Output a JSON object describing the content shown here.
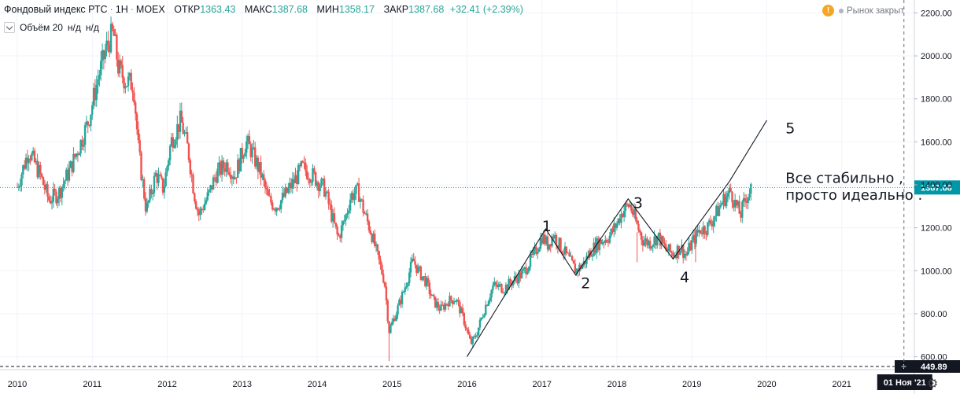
{
  "header": {
    "title": "Фондовый индекс РТС",
    "interval": "1Н",
    "exchange": "MOEX",
    "sep": "·",
    "open_label": "ОТКР",
    "open": "1363.43",
    "high_label": "МАКС",
    "high": "1387.68",
    "low_label": "МИН",
    "low": "1358.17",
    "close_label": "ЗАКР",
    "close": "1387.68",
    "change": "+32.41 (+2.39%)"
  },
  "volume": {
    "label": "Объём 20",
    "v1": "н/д",
    "v2": "н/д"
  },
  "market": {
    "status": "Рынок закрыт",
    "icon": "warning-icon"
  },
  "colors": {
    "up": "#26a69a",
    "down": "#ef5350",
    "price_line": "#26a69a",
    "price_tag": "#0097a7",
    "axis_text": "#131722"
  },
  "chart_data": {
    "type": "candlestick",
    "title": "Фондовый индекс РТС · 1Н · MOEX",
    "x_range": [
      2010,
      2022.2
    ],
    "ylim": [
      540,
      2260
    ],
    "x_ticks": [
      "2010",
      "2011",
      "2012",
      "2013",
      "2014",
      "2015",
      "2016",
      "2017",
      "2018",
      "2019",
      "2020",
      "2021"
    ],
    "y_ticks": [
      "2200.00",
      "2000.00",
      "1800.00",
      "1600.00",
      "1400.00",
      "1200.00",
      "1000.00",
      "800.00",
      "600.00"
    ],
    "last_price": 1387.68,
    "last_price_label": "1387.68",
    "price_levels": [
      {
        "value": 449.89,
        "label": "449.89"
      }
    ],
    "crosshair_label": "01 Ноя '21",
    "crosshair_x": 2021.83,
    "close_path": [
      [
        2010.0,
        1390
      ],
      [
        2010.15,
        1560
      ],
      [
        2010.3,
        1450
      ],
      [
        2010.42,
        1330
      ],
      [
        2010.55,
        1360
      ],
      [
        2010.7,
        1470
      ],
      [
        2010.85,
        1600
      ],
      [
        2010.95,
        1700
      ],
      [
        2011.08,
        1900
      ],
      [
        2011.2,
        2050
      ],
      [
        2011.28,
        2110
      ],
      [
        2011.35,
        1940
      ],
      [
        2011.45,
        1880
      ],
      [
        2011.55,
        1870
      ],
      [
        2011.62,
        1550
      ],
      [
        2011.72,
        1280
      ],
      [
        2011.85,
        1450
      ],
      [
        2011.95,
        1380
      ],
      [
        2012.05,
        1600
      ],
      [
        2012.18,
        1700
      ],
      [
        2012.28,
        1560
      ],
      [
        2012.36,
        1360
      ],
      [
        2012.42,
        1260
      ],
      [
        2012.55,
        1350
      ],
      [
        2012.65,
        1450
      ],
      [
        2012.8,
        1500
      ],
      [
        2012.9,
        1440
      ],
      [
        2013.05,
        1600
      ],
      [
        2013.12,
        1560
      ],
      [
        2013.25,
        1450
      ],
      [
        2013.35,
        1330
      ],
      [
        2013.45,
        1300
      ],
      [
        2013.55,
        1340
      ],
      [
        2013.7,
        1420
      ],
      [
        2013.8,
        1480
      ],
      [
        2013.95,
        1440
      ],
      [
        2014.1,
        1380
      ],
      [
        2014.2,
        1250
      ],
      [
        2014.28,
        1150
      ],
      [
        2014.38,
        1250
      ],
      [
        2014.45,
        1350
      ],
      [
        2014.55,
        1370
      ],
      [
        2014.62,
        1280
      ],
      [
        2014.72,
        1180
      ],
      [
        2014.82,
        1050
      ],
      [
        2014.9,
        950
      ],
      [
        2014.96,
        720
      ],
      [
        2015.05,
        800
      ],
      [
        2015.15,
        900
      ],
      [
        2015.28,
        1050
      ],
      [
        2015.35,
        1000
      ],
      [
        2015.45,
        950
      ],
      [
        2015.55,
        860
      ],
      [
        2015.65,
        820
      ],
      [
        2015.75,
        860
      ],
      [
        2015.85,
        870
      ],
      [
        2015.95,
        780
      ],
      [
        2016.05,
        660
      ],
      [
        2016.12,
        700
      ],
      [
        2016.25,
        840
      ],
      [
        2016.35,
        930
      ],
      [
        2016.5,
        920
      ],
      [
        2016.6,
        950
      ],
      [
        2016.75,
        990
      ],
      [
        2016.9,
        1080
      ],
      [
        2017.0,
        1160
      ],
      [
        2017.08,
        1120
      ],
      [
        2017.15,
        1170
      ],
      [
        2017.25,
        1110
      ],
      [
        2017.35,
        1060
      ],
      [
        2017.45,
        1000
      ],
      [
        2017.55,
        1030
      ],
      [
        2017.65,
        1090
      ],
      [
        2017.75,
        1130
      ],
      [
        2017.9,
        1160
      ],
      [
        2018.0,
        1220
      ],
      [
        2018.08,
        1280
      ],
      [
        2018.17,
        1310
      ],
      [
        2018.28,
        1200
      ],
      [
        2018.35,
        1140
      ],
      [
        2018.45,
        1130
      ],
      [
        2018.55,
        1160
      ],
      [
        2018.65,
        1100
      ],
      [
        2018.75,
        1080
      ],
      [
        2018.85,
        1110
      ],
      [
        2018.92,
        1070
      ],
      [
        2019.0,
        1130
      ],
      [
        2019.1,
        1190
      ],
      [
        2019.2,
        1200
      ],
      [
        2019.3,
        1250
      ],
      [
        2019.42,
        1330
      ],
      [
        2019.52,
        1370
      ],
      [
        2019.58,
        1310
      ],
      [
        2019.65,
        1260
      ],
      [
        2019.72,
        1340
      ],
      [
        2019.8,
        1388
      ]
    ],
    "wave_lines": [
      {
        "points": [
          [
            2016.0,
            600
          ],
          [
            2017.05,
            1195
          ],
          [
            2017.45,
            980
          ],
          [
            2018.15,
            1335
          ],
          [
            2018.75,
            1055
          ],
          [
            2019.5,
            1415
          ],
          [
            2020.0,
            1700
          ]
        ]
      }
    ],
    "annotations": [
      {
        "text": "1",
        "x": 2017.0,
        "y": 1185
      },
      {
        "text": "2",
        "x": 2017.52,
        "y": 918
      },
      {
        "text": "3",
        "x": 2018.22,
        "y": 1292
      },
      {
        "text": "4",
        "x": 2018.84,
        "y": 947
      },
      {
        "text": "5",
        "x": 2020.25,
        "y": 1640
      },
      {
        "text": "Все стабильно ,",
        "x": 2020.25,
        "y": 1410
      },
      {
        "text": "просто идеально .",
        "x": 2020.25,
        "y": 1330
      }
    ]
  }
}
